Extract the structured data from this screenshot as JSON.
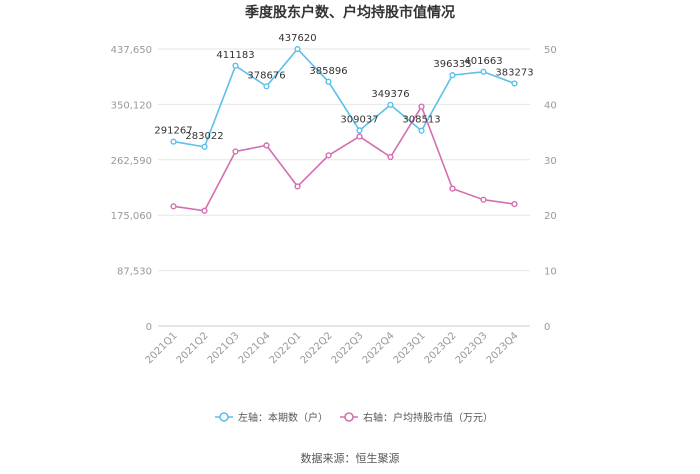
{
  "chart_data": {
    "type": "line",
    "title": "季度股东户数、户均持股市值情况",
    "categories": [
      "2021Q1",
      "2021Q2",
      "2021Q3",
      "2021Q4",
      "2022Q1",
      "2022Q2",
      "2022Q3",
      "2022Q4",
      "2023Q1",
      "2023Q2",
      "2023Q3",
      "2023Q4"
    ],
    "y_left": {
      "ylim": [
        0,
        437650
      ],
      "ticks": [
        "0",
        "87,530",
        "175,060",
        "262,590",
        "350,120",
        "437,650"
      ]
    },
    "y_right": {
      "ylim": [
        0,
        50
      ],
      "ticks": [
        "0",
        "10",
        "20",
        "30",
        "40",
        "50"
      ]
    },
    "series": [
      {
        "name": "左轴：本期数（户）",
        "axis": "left",
        "color": "#5bc0eb",
        "values": [
          291267,
          283022,
          411183,
          378676,
          437620,
          385896,
          309037,
          349376,
          308513,
          396335,
          401663,
          383273
        ],
        "labels": [
          "291267",
          "283022",
          "411183",
          "378676",
          "437620",
          "385896",
          "309037",
          "349376",
          "308513",
          "396335",
          "401663",
          "383273"
        ]
      },
      {
        "name": "右轴：户均持股市值（万元）",
        "axis": "right",
        "color": "#d36fb0",
        "values": [
          21.6,
          20.8,
          31.5,
          32.6,
          25.2,
          30.8,
          34.2,
          30.5,
          39.6,
          24.8,
          22.8,
          22.0
        ]
      }
    ],
    "grid": true,
    "legend": "bottom"
  },
  "source": "数据来源：恒生聚源"
}
